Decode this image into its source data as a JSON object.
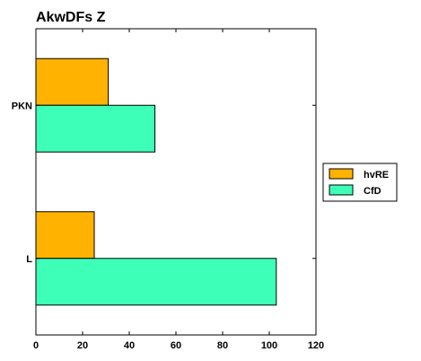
{
  "chart_data": {
    "type": "bar",
    "orientation": "horizontal",
    "title": "AkwDFs Z",
    "xlabel": "",
    "ylabel": "",
    "categories": [
      "PKN",
      "L"
    ],
    "series": [
      {
        "name": "hvRE",
        "values": [
          31,
          25
        ],
        "color": "#ffb300"
      },
      {
        "name": "CfD",
        "values": [
          51,
          103
        ],
        "color": "#3dffb8"
      }
    ],
    "xlim": [
      0,
      120
    ],
    "xticks": [
      0,
      20,
      40,
      60,
      80,
      100,
      120
    ],
    "grid": false,
    "legend_position": "right"
  }
}
